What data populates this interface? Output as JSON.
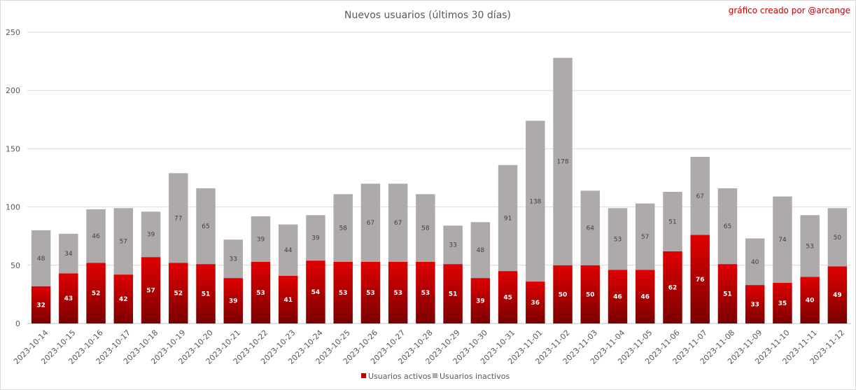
{
  "chart_data": {
    "type": "bar",
    "stacked": true,
    "title": "Nuevos usuarios (últimos 30 días)",
    "credit": "gráfico creado por @arcange",
    "categories": [
      "2023-10-14",
      "2023-10-15",
      "2023-10-16",
      "2023-10-17",
      "2023-10-18",
      "2023-10-19",
      "2023-10-20",
      "2023-10-21",
      "2023-10-22",
      "2023-10-23",
      "2023-10-24",
      "2023-10-25",
      "2023-10-26",
      "2023-10-27",
      "2023-10-28",
      "2023-10-29",
      "2023-10-30",
      "2023-10-31",
      "2023-11-01",
      "2023-11-02",
      "2023-11-03",
      "2023-11-04",
      "2023-11-05",
      "2023-11-06",
      "2023-11-07",
      "2023-11-08",
      "2023-11-09",
      "2023-11-10",
      "2023-11-11",
      "2023-11-12"
    ],
    "series": [
      {
        "name": "Usuarios activos",
        "color": "#c00000",
        "values": [
          32,
          43,
          52,
          42,
          57,
          52,
          51,
          39,
          53,
          41,
          54,
          53,
          53,
          53,
          53,
          51,
          39,
          45,
          36,
          50,
          50,
          46,
          46,
          62,
          76,
          51,
          33,
          35,
          40,
          49
        ]
      },
      {
        "name": "Usuarios inactivos",
        "color": "#aeaaaa",
        "values": [
          48,
          34,
          46,
          57,
          39,
          77,
          65,
          33,
          39,
          44,
          39,
          58,
          67,
          67,
          58,
          33,
          48,
          91,
          138,
          178,
          64,
          53,
          57,
          51,
          67,
          65,
          40,
          74,
          53,
          50
        ]
      }
    ],
    "ylim": [
      0,
      250
    ],
    "yticks": [
      "0",
      "50",
      "100",
      "150",
      "200",
      "250"
    ],
    "grid": true,
    "legend_position": "bottom"
  }
}
